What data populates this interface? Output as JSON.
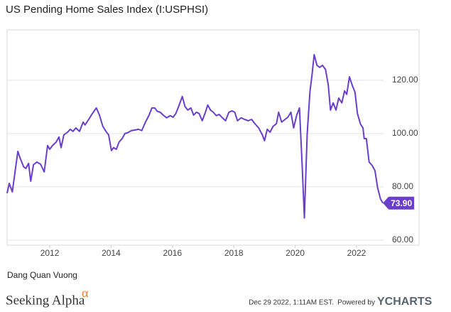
{
  "chart_data": {
    "type": "line",
    "title": "US Pending Home Sales Index (I:USPHSI)",
    "author": "Dang Quan Vuong",
    "brand": "Seeking Alpha",
    "brand_mark": "α",
    "timestamp": "Dec 29 2022, 1:11AM EST.",
    "powered_by": "Powered by",
    "provider": "YCHARTS",
    "xlim": [
      2010.61,
      2022.88
    ],
    "xticks": [
      2012,
      2014,
      2016,
      2018,
      2020,
      2022
    ],
    "ylim": [
      58.1,
      138.9
    ],
    "yticks": [
      {
        "value": 60,
        "label": "60.00"
      },
      {
        "value": 80,
        "label": "80.00"
      },
      {
        "value": 100,
        "label": "100.00"
      },
      {
        "value": 120,
        "label": "120.00"
      }
    ],
    "grid": true,
    "series": [
      {
        "name": "US Pending Home Sales Index",
        "color": "#6a3dcb",
        "x": [
          2010.61,
          2010.68,
          2010.78,
          2010.96,
          2011.03,
          2011.15,
          2011.22,
          2011.31,
          2011.38,
          2011.47,
          2011.58,
          2011.7,
          2011.82,
          2011.93,
          2012.0,
          2012.09,
          2012.21,
          2012.3,
          2012.37,
          2012.46,
          2012.58,
          2012.67,
          2012.76,
          2012.85,
          2012.97,
          2013.09,
          2013.15,
          2013.27,
          2013.39,
          2013.52,
          2013.62,
          2013.73,
          2013.85,
          2013.92,
          2014.01,
          2014.08,
          2014.17,
          2014.26,
          2014.36,
          2014.45,
          2014.54,
          2014.66,
          2014.77,
          2014.89,
          2015.0,
          2015.12,
          2015.23,
          2015.33,
          2015.42,
          2015.51,
          2015.6,
          2015.7,
          2015.81,
          2015.93,
          2016.02,
          2016.11,
          2016.2,
          2016.32,
          2016.41,
          2016.5,
          2016.6,
          2016.69,
          2016.78,
          2016.87,
          2016.97,
          2017.06,
          2017.15,
          2017.24,
          2017.33,
          2017.43,
          2017.52,
          2017.61,
          2017.73,
          2017.84,
          2017.94,
          2018.03,
          2018.12,
          2018.24,
          2018.35,
          2018.47,
          2018.58,
          2018.7,
          2018.81,
          2018.93,
          2019.0,
          2019.09,
          2019.18,
          2019.28,
          2019.39,
          2019.46,
          2019.56,
          2019.67,
          2019.76,
          2019.86,
          2019.95,
          2020.05,
          2020.14,
          2020.23,
          2020.3,
          2020.39,
          2020.48,
          2020.55,
          2020.62,
          2020.71,
          2020.8,
          2020.89,
          2020.99,
          2021.08,
          2021.15,
          2021.24,
          2021.33,
          2021.42,
          2021.52,
          2021.61,
          2021.68,
          2021.77,
          2021.86,
          2021.95,
          2022.03,
          2022.13,
          2022.21,
          2022.25,
          2022.32,
          2022.41,
          2022.51,
          2022.6,
          2022.69,
          2022.78,
          2022.86
        ],
        "values": [
          77.6,
          81.3,
          78.1,
          93.3,
          90.9,
          87.5,
          86.9,
          88.8,
          82.1,
          88.3,
          89.3,
          88.5,
          85.6,
          95.5,
          94.1,
          95.5,
          96.8,
          98.7,
          94.7,
          99.5,
          100.5,
          101.6,
          100.8,
          102.1,
          100.8,
          104.3,
          103.2,
          105.3,
          107.5,
          109.6,
          106.9,
          102.7,
          100.5,
          99.5,
          93.6,
          94.7,
          94.1,
          96.8,
          98.1,
          100.0,
          100.3,
          101.1,
          101.3,
          101.6,
          101.1,
          104.3,
          106.7,
          109.6,
          109.6,
          108.3,
          108.0,
          106.9,
          105.9,
          106.7,
          106.1,
          107.5,
          110.1,
          113.9,
          110.1,
          108.8,
          109.6,
          106.9,
          108.0,
          107.5,
          104.8,
          107.5,
          110.7,
          108.8,
          108.0,
          106.7,
          107.2,
          106.1,
          104.8,
          108.0,
          108.5,
          108.0,
          104.8,
          105.9,
          105.3,
          104.8,
          105.3,
          103.5,
          102.1,
          99.5,
          97.3,
          101.6,
          100.5,
          102.7,
          103.7,
          108.0,
          104.3,
          105.3,
          106.1,
          108.0,
          102.1,
          106.9,
          109.6,
          87.5,
          68.3,
          99.5,
          115.5,
          122.1,
          129.6,
          125.6,
          124.8,
          125.6,
          124.0,
          118.1,
          108.8,
          111.5,
          108.8,
          113.3,
          111.5,
          116.0,
          114.7,
          121.3,
          118.1,
          115.5,
          107.5,
          103.5,
          102.1,
          98.1,
          98.1,
          89.3,
          88.0,
          86.1,
          79.5,
          75.5,
          73.9
        ],
        "value_labels": [
          null,
          null,
          null,
          null,
          null,
          null,
          null,
          null,
          null,
          null,
          null,
          null,
          null,
          null,
          null,
          null,
          null,
          null,
          null,
          null,
          null,
          null,
          null,
          null,
          null,
          null,
          null,
          null,
          null,
          null,
          null,
          null,
          null,
          null,
          null,
          null,
          null,
          null,
          null,
          null,
          null,
          null,
          null,
          null,
          null,
          null,
          null,
          null,
          null,
          null,
          null,
          null,
          null,
          null,
          null,
          null,
          null,
          null,
          null,
          null,
          null,
          null,
          null,
          null,
          null,
          null,
          null,
          null,
          null,
          null,
          null,
          null,
          null,
          null,
          null,
          null,
          null,
          null,
          null,
          null,
          null,
          null,
          null,
          null,
          null,
          null,
          null,
          null,
          null,
          null,
          null,
          null,
          null,
          null,
          null,
          null,
          null,
          null,
          null,
          null,
          null,
          null,
          null,
          null,
          null,
          null,
          null,
          null,
          null,
          null,
          null,
          null,
          null,
          null,
          null,
          null,
          null,
          null,
          null,
          null,
          null,
          null,
          null,
          null,
          null,
          null,
          null,
          null,
          "73.90"
        ]
      }
    ]
  }
}
